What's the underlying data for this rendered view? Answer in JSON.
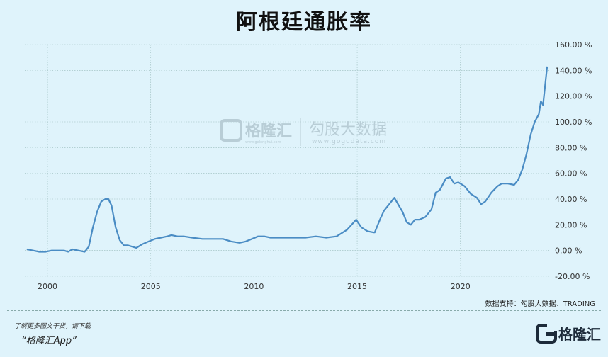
{
  "title": "阿根廷通胀率",
  "source_note": "数据支持：勾股大数据、TRADING",
  "footer": {
    "line1": "了解更多图文干货，请下载",
    "line2": "“格隆汇App”"
  },
  "brand": {
    "name": "格隆汇",
    "icon": "gelonghui-logo-icon"
  },
  "watermark": {
    "logo_text": "格隆汇",
    "logo_sub": "www.gelonghui.com",
    "cn": "勾股大数据",
    "url": "www.gogudata.com"
  },
  "colors": {
    "line": "#4a8cc4",
    "background": "#dff3fb",
    "grid": "#9bb"
  },
  "chart_data": {
    "type": "line",
    "title": "阿根廷通胀率",
    "xlim": [
      1998.9,
      2024.3
    ],
    "ylim": [
      -20,
      160
    ],
    "y_ticks": [
      -20,
      0,
      20,
      40,
      60,
      80,
      100,
      120,
      140,
      160
    ],
    "y_tick_labels": [
      "-20.00 %",
      "0.00 %",
      "20.00 %",
      "40.00 %",
      "60.00 %",
      "80.00 %",
      "100.00 %",
      "120.00 %",
      "140.00 %",
      "160.00 %"
    ],
    "x_ticks": [
      2000,
      2005,
      2010,
      2015,
      2020
    ],
    "x_tick_labels": [
      "2000",
      "2005",
      "2010",
      "2015",
      "2020"
    ],
    "grid": true,
    "series": [
      {
        "x": [
          1999.0,
          1999.3,
          1999.6,
          1999.9,
          2000.2,
          2000.5,
          2000.8,
          2001.0,
          2001.2,
          2001.5,
          2001.8,
          2002.0,
          2002.2,
          2002.4,
          2002.6,
          2002.8,
          2002.95,
          2003.1,
          2003.3,
          2003.5,
          2003.7,
          2003.9,
          2004.1,
          2004.3,
          2004.6,
          2004.9,
          2005.2,
          2005.5,
          2005.8,
          2006.0,
          2006.3,
          2006.6,
          2007.0,
          2007.5,
          2008.0,
          2008.5,
          2008.9,
          2009.3,
          2009.6,
          2009.9,
          2010.2,
          2010.5,
          2010.8,
          2011.2,
          2011.5,
          2011.9,
          2012.5,
          2013.0,
          2013.5,
          2014.0,
          2014.5,
          2014.95,
          2015.2,
          2015.5,
          2015.8,
          2015.85,
          2016.1,
          2016.3,
          2016.8,
          2017.2,
          2017.4,
          2017.6,
          2017.8,
          2018.0,
          2018.3,
          2018.6,
          2018.8,
          2019.0,
          2019.3,
          2019.5,
          2019.7,
          2019.9,
          2020.2,
          2020.5,
          2020.8,
          2021.0,
          2021.2,
          2021.5,
          2021.8,
          2022.0,
          2022.3,
          2022.6,
          2022.8,
          2023.0,
          2023.2,
          2023.4,
          2023.6,
          2023.8,
          2023.9,
          2024.0,
          2024.1,
          2024.2
        ],
        "y": [
          1,
          0,
          -1,
          -1,
          0,
          0,
          0,
          -1,
          1,
          0,
          -1,
          3,
          18,
          30,
          38,
          40,
          40,
          35,
          18,
          8,
          4,
          4,
          3,
          2,
          5,
          7,
          9,
          10,
          11,
          12,
          11,
          11,
          10,
          9,
          9,
          9,
          7,
          6,
          7,
          9,
          11,
          11,
          10,
          10,
          10,
          10,
          10,
          11,
          10,
          11,
          16,
          24,
          18,
          15,
          14,
          14,
          24,
          31,
          41,
          30,
          22,
          20,
          24,
          24,
          26,
          32,
          45,
          47,
          56,
          57,
          52,
          53,
          50,
          44,
          41,
          36,
          38,
          45,
          50,
          52,
          52,
          51,
          55,
          63,
          75,
          90,
          100,
          106,
          116,
          113,
          128,
          143
        ]
      }
    ]
  }
}
